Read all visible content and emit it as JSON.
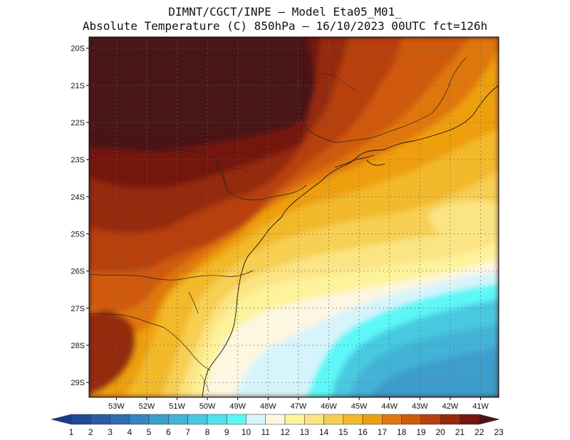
{
  "header": {
    "line1": "DIMNT/CGCT/INPE –  Model Eta05_M01_",
    "line2": "Absolute Temperature (C) 850hPa –  16/10/2023 00UTC fct=126h"
  },
  "map": {
    "lat_labels": [
      "20S",
      "21S",
      "22S",
      "23S",
      "24S",
      "25S",
      "26S",
      "27S",
      "28S",
      "29S"
    ],
    "lon_labels": [
      "53W",
      "52W",
      "51W",
      "50W",
      "49W",
      "48W",
      "47W",
      "46W",
      "45W",
      "44W",
      "43W",
      "42W",
      "41W"
    ],
    "bounds": {
      "lon_west": -53.9,
      "lon_east": -40.4,
      "lat_north": -19.7,
      "lat_south": -29.4
    }
  },
  "colorbar": {
    "labels": [
      "1",
      "2",
      "3",
      "4",
      "5",
      "6",
      "7",
      "8",
      "9",
      "10",
      "11",
      "12",
      "13",
      "14",
      "15",
      "16",
      "17",
      "18",
      "19",
      "20",
      "21",
      "22",
      "23"
    ],
    "colors": [
      "#1b3a8c",
      "#1f4a9c",
      "#2a5aa8",
      "#2f6db5",
      "#3585c0",
      "#3d9dcc",
      "#43b3d6",
      "#48c9e0",
      "#4fe2ee",
      "#5df7f7",
      "#d6f4fb",
      "#fdf6e1",
      "#fdf39a",
      "#fbe483",
      "#f6cf52",
      "#f2b92a",
      "#ee9f10",
      "#e07710",
      "#cf5a0c",
      "#b8400e",
      "#952a0c",
      "#75170f",
      "#4a1418"
    ]
  }
}
